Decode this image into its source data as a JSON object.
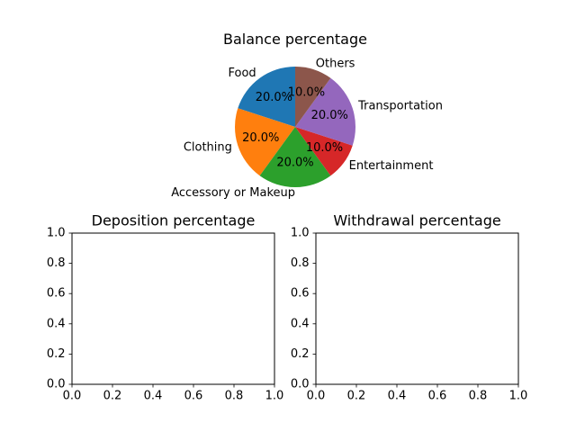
{
  "chart_data": [
    {
      "type": "pie",
      "title": "Balance percentage",
      "categories": [
        "Food",
        "Clothing",
        "Accessory or Makeup",
        "Entertainment",
        "Transportation",
        "Others"
      ],
      "values": [
        20.0,
        20.0,
        20.0,
        10.0,
        20.0,
        10.0
      ],
      "value_labels": [
        "20.0%",
        "20.0%",
        "20.0%",
        "10.0%",
        "20.0%",
        "10.0%"
      ],
      "colors": [
        "#1f77b4",
        "#ff7f0e",
        "#2ca02c",
        "#d62728",
        "#9467bd",
        "#8c564b"
      ],
      "start_angle_deg": 90,
      "direction": "counterclockwise"
    },
    {
      "type": "scatter",
      "title": "Deposition percentage",
      "series": [],
      "xlim": [
        0.0,
        1.0
      ],
      "ylim": [
        0.0,
        1.0
      ],
      "xticks": [
        "0.0",
        "0.2",
        "0.4",
        "0.6",
        "0.8",
        "1.0"
      ],
      "yticks": [
        "0.0",
        "0.2",
        "0.4",
        "0.6",
        "0.8",
        "1.0"
      ],
      "grid": false
    },
    {
      "type": "scatter",
      "title": "Withdrawal percentage",
      "series": [],
      "xlim": [
        0.0,
        1.0
      ],
      "ylim": [
        0.0,
        1.0
      ],
      "xticks": [
        "0.0",
        "0.2",
        "0.4",
        "0.6",
        "0.8",
        "1.0"
      ],
      "yticks": [
        "0.0",
        "0.2",
        "0.4",
        "0.6",
        "0.8",
        "1.0"
      ],
      "grid": false
    }
  ]
}
